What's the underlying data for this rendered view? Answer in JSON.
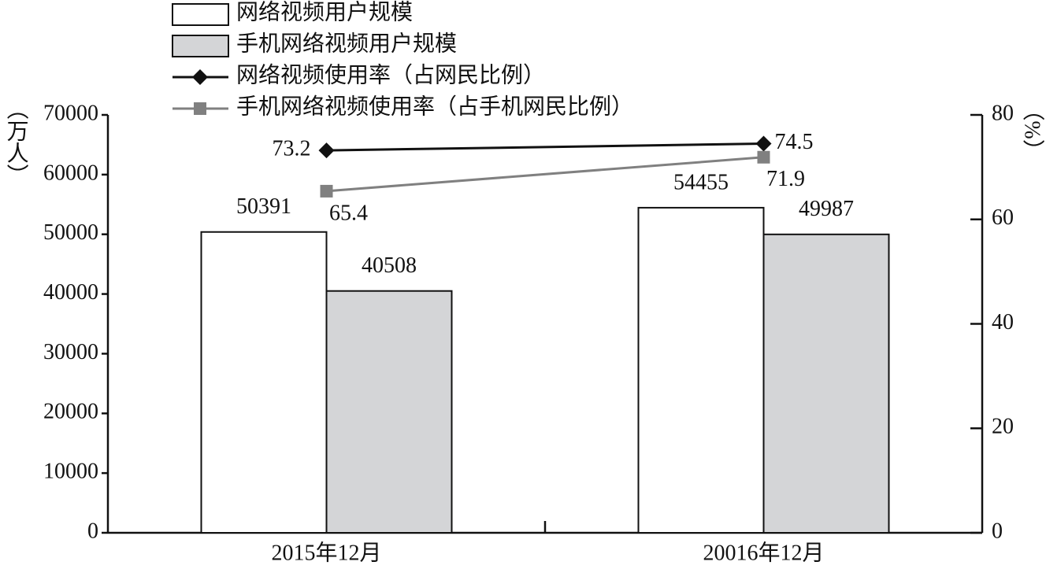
{
  "chart_data": {
    "type": "bar",
    "categories": [
      "2015年12月",
      "20016年12月"
    ],
    "y_label": "（万人）",
    "y2_label": "（%）",
    "ylim": [
      0,
      70000
    ],
    "yticks": [
      0,
      10000,
      20000,
      30000,
      40000,
      50000,
      60000,
      70000
    ],
    "y2lim": [
      0,
      80
    ],
    "y2ticks": [
      0,
      20,
      40,
      60,
      80
    ],
    "series": [
      {
        "name": "网络视频用户规模",
        "type": "bar",
        "color": "#ffffff",
        "values": [
          50391,
          54455
        ]
      },
      {
        "name": "手机网络视频用户规模",
        "type": "bar",
        "color": "#d4d5d7",
        "values": [
          40508,
          49987
        ]
      },
      {
        "name": "网络视频使用率（占网民比例）",
        "type": "line",
        "axis": "y2",
        "marker": "diamond",
        "color": "#111111",
        "values": [
          73.2,
          74.5
        ]
      },
      {
        "name": "手机网络视频使用率（占手机网民比例）",
        "type": "line",
        "axis": "y2",
        "marker": "square",
        "color": "#808080",
        "values": [
          65.4,
          71.9
        ]
      }
    ]
  }
}
